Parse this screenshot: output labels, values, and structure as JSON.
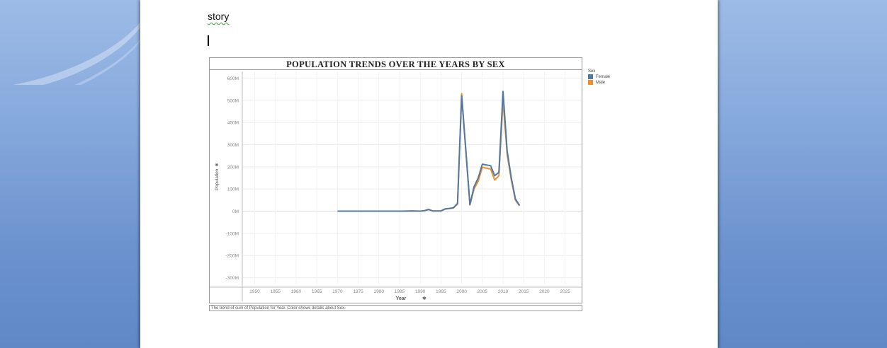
{
  "document": {
    "text": "story"
  },
  "chart": {
    "caption": "The trend of sum of Population for Year.  Color shows details about Sex."
  },
  "legend": {
    "title": "Sex",
    "items": [
      {
        "label": "Female",
        "color": "#4e79a7"
      },
      {
        "label": "Male",
        "color": "#f28e2b"
      }
    ]
  },
  "chart_data": {
    "type": "line",
    "title": "POPULATION TRENDS OVER THE YEARS BY SEX",
    "xlabel": "Year",
    "ylabel": "Population",
    "xlim": [
      1947,
      2029
    ],
    "ylim": [
      -330,
      630
    ],
    "y_unit_suffix": "M",
    "x_ticks": [
      1950,
      1955,
      1960,
      1965,
      1970,
      1975,
      1980,
      1985,
      1990,
      1995,
      2000,
      2005,
      2010,
      2015,
      2020,
      2025
    ],
    "y_ticks": [
      600,
      500,
      400,
      300,
      200,
      100,
      0,
      -100,
      -200,
      -300
    ],
    "grid": true,
    "legend_position": "right",
    "series": [
      {
        "name": "Female",
        "color": "#4e79a7",
        "points": [
          [
            1970,
            0
          ],
          [
            1972,
            0
          ],
          [
            1974,
            0
          ],
          [
            1976,
            0
          ],
          [
            1978,
            0
          ],
          [
            1980,
            0
          ],
          [
            1982,
            0
          ],
          [
            1984,
            0
          ],
          [
            1986,
            0
          ],
          [
            1988,
            1
          ],
          [
            1990,
            0
          ],
          [
            1991,
            2
          ],
          [
            1992,
            8
          ],
          [
            1993,
            1
          ],
          [
            1995,
            1
          ],
          [
            1996,
            10
          ],
          [
            1998,
            15
          ],
          [
            1999,
            35
          ],
          [
            2000,
            520
          ],
          [
            2002,
            30
          ],
          [
            2003,
            110
          ],
          [
            2004,
            150
          ],
          [
            2005,
            212
          ],
          [
            2007,
            205
          ],
          [
            2008,
            160
          ],
          [
            2009,
            175
          ],
          [
            2010,
            540
          ],
          [
            2011,
            270
          ],
          [
            2012,
            150
          ],
          [
            2013,
            55
          ],
          [
            2014,
            25
          ]
        ]
      },
      {
        "name": "Male",
        "color": "#f28e2b",
        "points": [
          [
            1970,
            0
          ],
          [
            1972,
            0
          ],
          [
            1974,
            0
          ],
          [
            1976,
            0
          ],
          [
            1978,
            0
          ],
          [
            1980,
            0
          ],
          [
            1982,
            0
          ],
          [
            1984,
            0
          ],
          [
            1986,
            0
          ],
          [
            1988,
            1
          ],
          [
            1990,
            0
          ],
          [
            1991,
            2
          ],
          [
            1992,
            7
          ],
          [
            1993,
            1
          ],
          [
            1995,
            1
          ],
          [
            1996,
            9
          ],
          [
            1998,
            14
          ],
          [
            1999,
            32
          ],
          [
            2000,
            530
          ],
          [
            2002,
            28
          ],
          [
            2003,
            100
          ],
          [
            2004,
            135
          ],
          [
            2005,
            198
          ],
          [
            2007,
            190
          ],
          [
            2008,
            140
          ],
          [
            2009,
            160
          ],
          [
            2010,
            500
          ],
          [
            2011,
            255
          ],
          [
            2012,
            140
          ],
          [
            2013,
            50
          ],
          [
            2014,
            24
          ]
        ]
      }
    ]
  }
}
